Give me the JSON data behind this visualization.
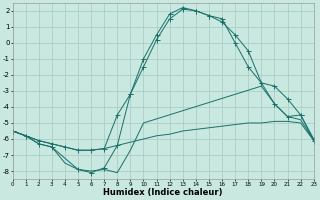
{
  "xlabel": "Humidex (Indice chaleur)",
  "background_color": "#c8e8e0",
  "grid_color": "#a8c8c4",
  "line_color": "#1a7068",
  "xlim": [
    0,
    23
  ],
  "ylim": [
    -8.5,
    2.5
  ],
  "yticks": [
    2,
    1,
    0,
    -1,
    -2,
    -3,
    -4,
    -5,
    -6,
    -7,
    -8
  ],
  "xticks": [
    0,
    1,
    2,
    3,
    4,
    5,
    6,
    7,
    8,
    9,
    10,
    11,
    12,
    13,
    14,
    15,
    16,
    17,
    18,
    19,
    20,
    21,
    22,
    23
  ],
  "line1_x": [
    0,
    1,
    2,
    3,
    4,
    5,
    6,
    7,
    8,
    9,
    10,
    11,
    12,
    13,
    14,
    15,
    16,
    17,
    18,
    19,
    20,
    21,
    22,
    23
  ],
  "line1_y": [
    -5.5,
    -5.8,
    -6.1,
    -6.3,
    -6.5,
    -6.7,
    -6.7,
    -6.6,
    -6.4,
    -6.2,
    -6.0,
    -5.8,
    -5.7,
    -5.5,
    -5.4,
    -5.3,
    -5.2,
    -5.1,
    -5.0,
    -5.0,
    -4.9,
    -4.9,
    -5.0,
    -6.1
  ],
  "line2_x": [
    0,
    1,
    2,
    3,
    4,
    5,
    6,
    7,
    8,
    9,
    10,
    11,
    12,
    13,
    14,
    15,
    16,
    17,
    18,
    19,
    20,
    21,
    22,
    23
  ],
  "line2_y": [
    -5.5,
    -5.8,
    -6.1,
    -6.3,
    -6.5,
    -6.7,
    -6.7,
    -6.6,
    -4.5,
    -3.2,
    -1.5,
    0.2,
    1.5,
    2.1,
    2.0,
    1.7,
    1.3,
    0.5,
    -0.5,
    -2.5,
    -2.7,
    -3.5,
    -4.5,
    -6.1
  ],
  "line3_x": [
    0,
    1,
    2,
    3,
    4,
    5,
    6,
    7,
    8,
    9,
    10,
    19,
    20,
    21,
    22,
    23
  ],
  "line3_y": [
    -5.5,
    -5.8,
    -6.3,
    -6.5,
    -7.5,
    -7.9,
    -8.0,
    -7.9,
    -8.1,
    -6.7,
    -5.0,
    -2.7,
    -3.8,
    -4.6,
    -4.8,
    -6.1
  ],
  "line4_x": [
    0,
    1,
    2,
    3,
    5,
    6,
    7,
    8,
    9,
    10,
    11,
    12,
    13,
    14,
    15,
    16,
    17,
    18,
    19,
    20,
    21,
    22,
    23
  ],
  "line4_y": [
    -5.5,
    -5.8,
    -6.3,
    -6.5,
    -7.9,
    -8.1,
    -7.8,
    -6.4,
    -3.2,
    -1.0,
    0.5,
    1.8,
    2.2,
    2.0,
    1.7,
    1.5,
    0.0,
    -1.5,
    -2.5,
    -3.8,
    -4.6,
    -4.5,
    -6.0
  ]
}
